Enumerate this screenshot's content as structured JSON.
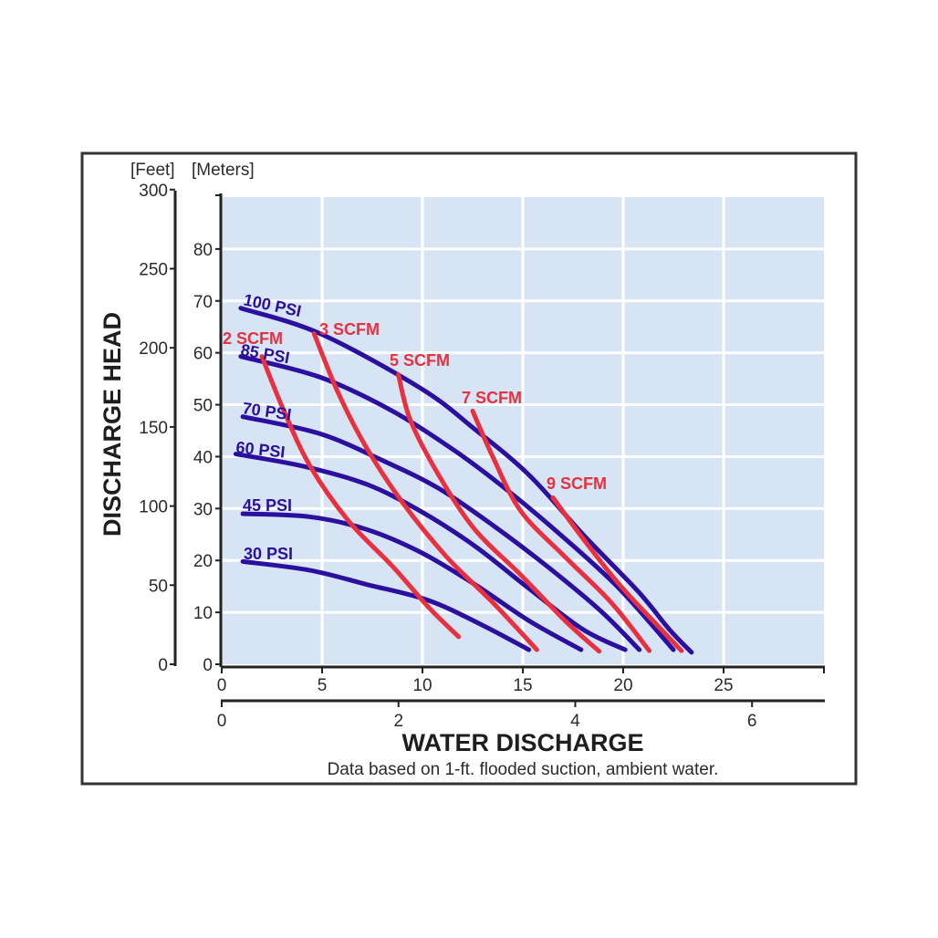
{
  "chart_data": {
    "type": "line",
    "xlabel": "WATER DISCHARGE",
    "ylabel": "DISCHARGE HEAD",
    "note": "Data based on 1-ft. flooded suction, ambient water.",
    "y_unit_labels": {
      "feet": "[Feet]",
      "meters": "[Meters]"
    },
    "xlim": [
      0,
      30
    ],
    "ylim_meters": [
      0,
      90
    ],
    "x_ticks": [
      "0",
      "5",
      "10",
      "15",
      "20",
      "25"
    ],
    "x2_ticks": [
      "0",
      "2",
      "4",
      "6"
    ],
    "y_ticks_meters": [
      "0",
      "10",
      "20",
      "30",
      "40",
      "50",
      "60",
      "70",
      "80"
    ],
    "y_ticks_feet": [
      "0",
      "50",
      "100",
      "150",
      "200",
      "250",
      "300"
    ],
    "grid": true,
    "colors": {
      "pressure": "#2b0f9e",
      "air": "#e8303f",
      "plot_bg": "#d7e4f4",
      "frame": "#333333"
    },
    "pressure_series": [
      {
        "name": "100 PSI",
        "x": [
          0.95,
          4.9,
          9.9,
          12.6,
          15.3,
          18,
          20.75,
          22.3,
          23.4
        ],
        "y": [
          68.6,
          63.7,
          53.2,
          45.3,
          36.5,
          25,
          14,
          6.7,
          2.3
        ]
      },
      {
        "name": "85 PSI",
        "x": [
          0.95,
          4.9,
          8.5,
          11.7,
          14.4,
          17.1,
          19.8,
          22.5
        ],
        "y": [
          59.3,
          55.3,
          48.8,
          40.9,
          33,
          24.2,
          14.6,
          2.8
        ]
      },
      {
        "name": "70 PSI",
        "x": [
          1.05,
          4.9,
          8.1,
          10.8,
          13.5,
          16.2,
          18.9,
          20.8
        ],
        "y": [
          47.7,
          44.4,
          39.1,
          33.9,
          26.8,
          18.9,
          10.2,
          2.8
        ]
      },
      {
        "name": "60 PSI",
        "x": [
          0.7,
          4.0,
          7.2,
          9.9,
          12.6,
          15.3,
          18,
          20.1
        ],
        "y": [
          40.5,
          38.2,
          34.7,
          29.5,
          22.8,
          14.6,
          6.7,
          2.8
        ]
      },
      {
        "name": "45 PSI",
        "x": [
          1.05,
          4.4,
          7.2,
          9.9,
          12.6,
          15.3,
          17.9
        ],
        "y": [
          29,
          28.4,
          26,
          21.6,
          15.4,
          8.4,
          2.8
        ]
      },
      {
        "name": "30 PSI",
        "x": [
          1.05,
          4.4,
          7.2,
          10.3,
          13,
          15.3
        ],
        "y": [
          19.8,
          18.1,
          15.4,
          12.3,
          7.5,
          2.8
        ]
      }
    ],
    "air_series": [
      {
        "name": "2 SCFM",
        "x": [
          2,
          3.1,
          4.4,
          6.3,
          8.5,
          10.3,
          11.8
        ],
        "y": [
          59.3,
          48.8,
          38.2,
          27.7,
          18.9,
          11,
          5.3
        ]
      },
      {
        "name": "3 SCFM",
        "x": [
          4.6,
          5.8,
          7.2,
          9,
          11.2,
          13.5,
          15.7
        ],
        "y": [
          63.7,
          52.3,
          41.8,
          31.2,
          20.7,
          11.9,
          2.8
        ]
      },
      {
        "name": "5 SCFM",
        "x": [
          8.8,
          9.4,
          10.8,
          12.6,
          14.9,
          17.1,
          18.8
        ],
        "y": [
          55.8,
          47,
          36.5,
          26,
          17.2,
          8.4,
          2.5
        ]
      },
      {
        "name": "7 SCFM",
        "x": [
          12.5,
          13.5,
          14.9,
          17.1,
          19.4,
          21.3
        ],
        "y": [
          48.8,
          40,
          29.5,
          20.7,
          11.9,
          2.6
        ]
      },
      {
        "name": "9 SCFM",
        "x": [
          16.5,
          18,
          19.8,
          21.7,
          22.9
        ],
        "y": [
          32.1,
          24.2,
          15.4,
          7.5,
          2.6
        ]
      }
    ]
  }
}
